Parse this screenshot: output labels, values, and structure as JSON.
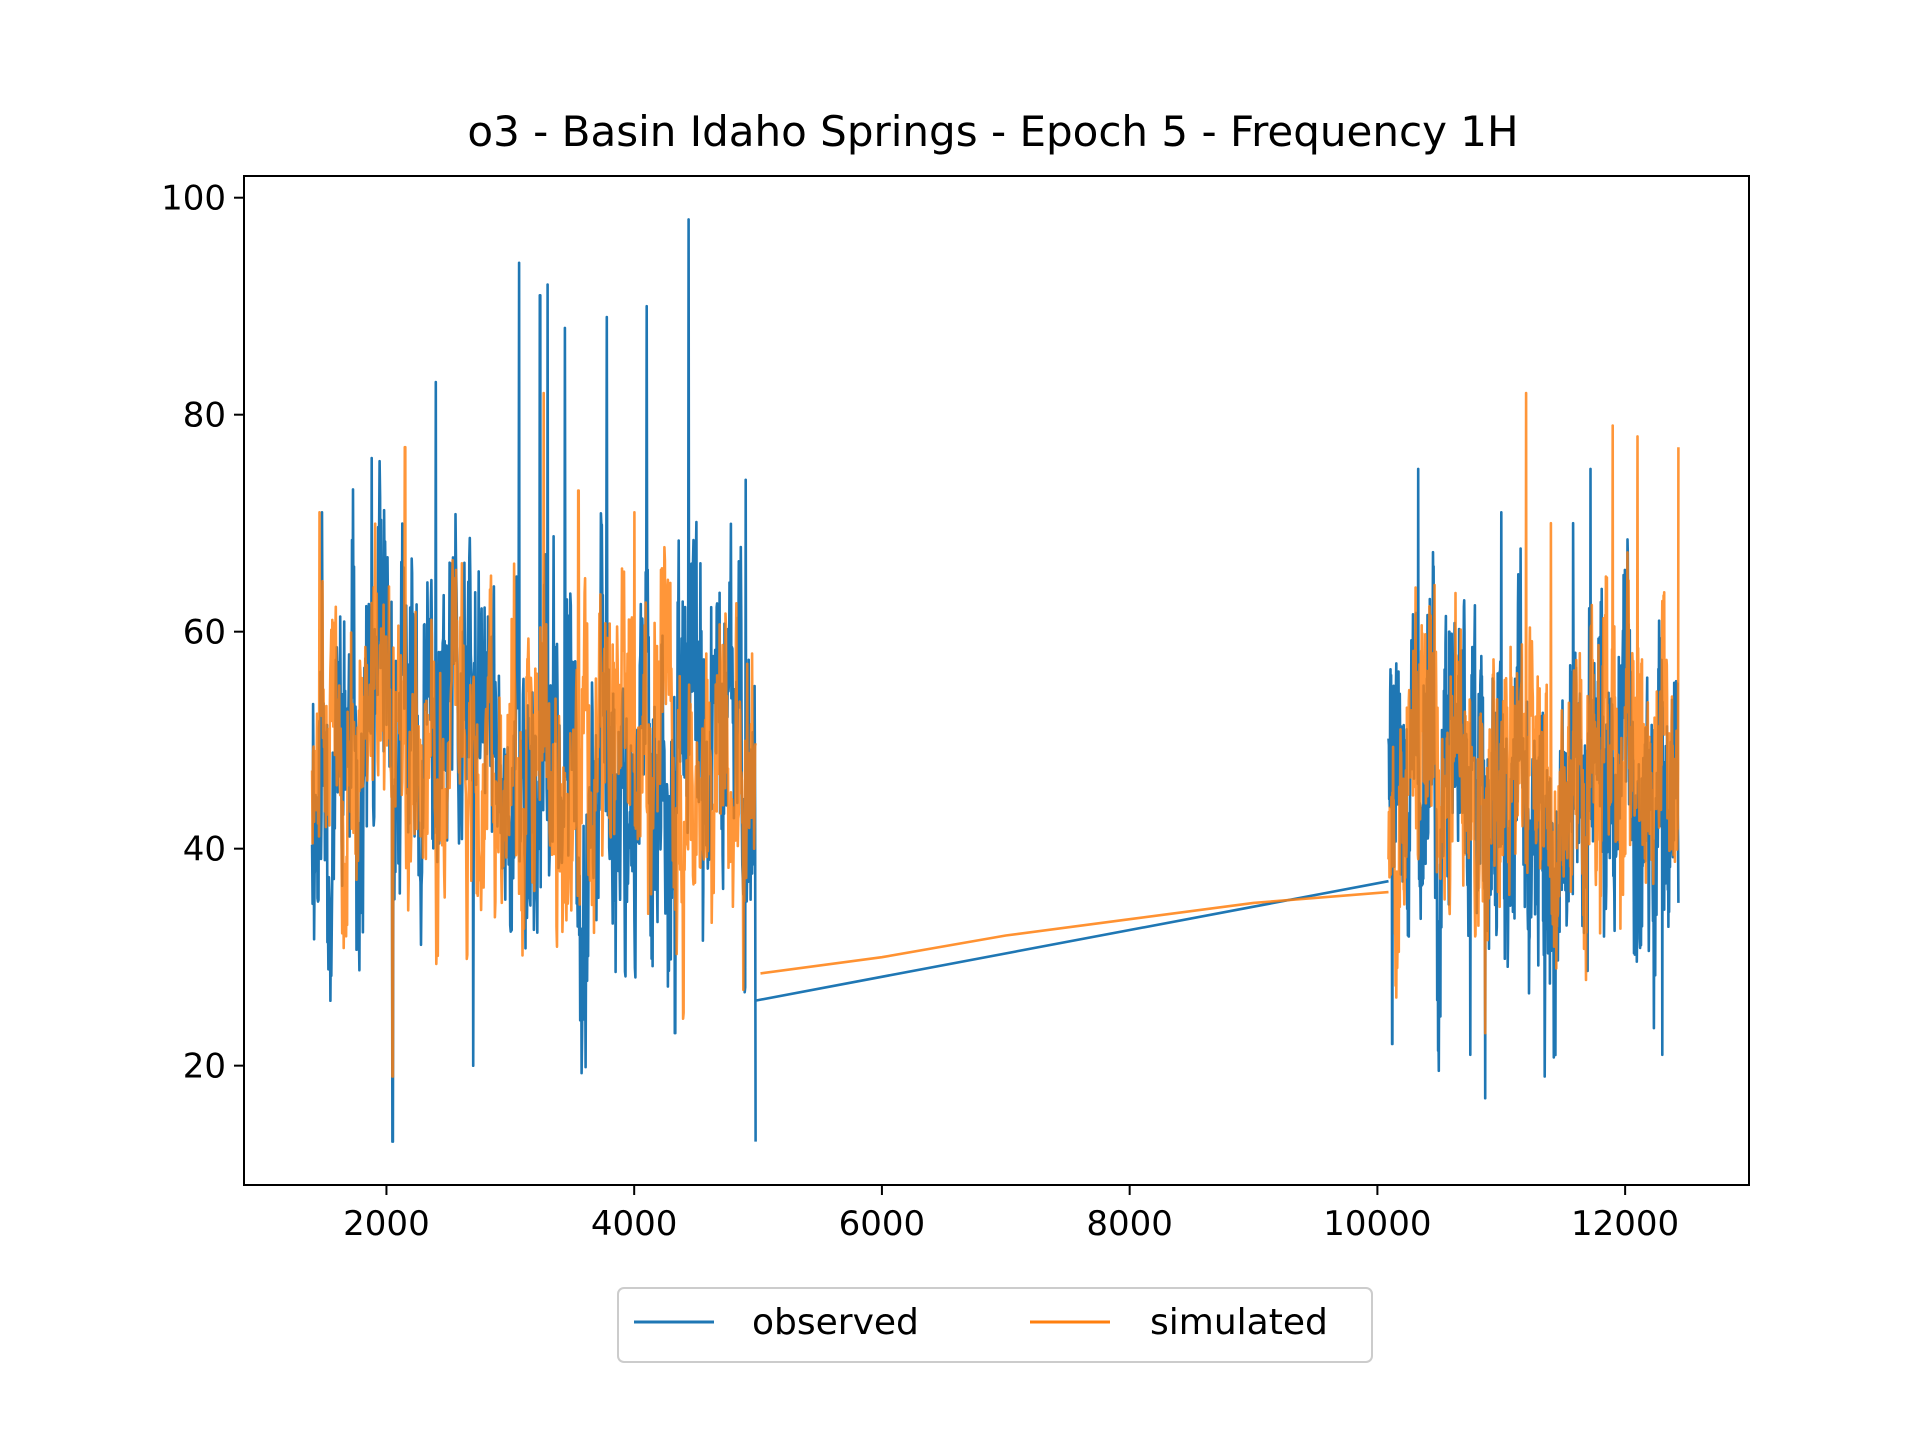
{
  "chart_data": {
    "type": "line",
    "title": "o3 - Basin Idaho Springs - Epoch 5 - Frequency 1H",
    "xlabel": "",
    "ylabel": "",
    "xlim": [
      850,
      13000
    ],
    "ylim": [
      9,
      102
    ],
    "xticks": [
      2000,
      4000,
      6000,
      8000,
      10000,
      12000
    ],
    "yticks": [
      20,
      40,
      60,
      80,
      100
    ],
    "grid": false,
    "legend": {
      "placement": "bottom-center",
      "columns": 2
    },
    "series": [
      {
        "name": "observed",
        "color": "#1f77b4",
        "segments": [
          {
            "x_start": 1400,
            "x_end": 4980,
            "seed": 11,
            "mean": 48,
            "amp": 14,
            "min": 13,
            "max": 98,
            "peaks": [
              [
                1480,
                71
              ],
              [
                1880,
                76
              ],
              [
                2050,
                13
              ],
              [
                2400,
                83
              ],
              [
                2700,
                20
              ],
              [
                3070,
                94
              ],
              [
                3240,
                91
              ],
              [
                3300,
                92
              ],
              [
                3440,
                88
              ],
              [
                3780,
                89
              ],
              [
                4100,
                90
              ],
              [
                4330,
                23
              ],
              [
                4440,
                98
              ],
              [
                4900,
                74
              ],
              [
                4980,
                13
              ]
            ]
          },
          {
            "x_start": 10090,
            "x_end": 12430,
            "seed": 29,
            "mean": 46,
            "amp": 12,
            "min": 17,
            "max": 75,
            "peaks": [
              [
                10120,
                22
              ],
              [
                10330,
                75
              ],
              [
                10580,
                60
              ],
              [
                10750,
                21
              ],
              [
                10870,
                17
              ],
              [
                11000,
                71
              ],
              [
                11350,
                19
              ],
              [
                11580,
                70
              ],
              [
                11720,
                75
              ],
              [
                12300,
                21
              ],
              [
                12430,
                35
              ]
            ]
          }
        ],
        "bridge": [
          [
            4980,
            26
          ],
          [
            10090,
            37
          ]
        ]
      },
      {
        "name": "simulated",
        "color": "#ff7f0e",
        "segments": [
          {
            "x_start": 1400,
            "x_end": 4980,
            "seed": 47,
            "mean": 49,
            "amp": 11,
            "min": 19,
            "max": 82,
            "peaks": [
              [
                1460,
                71
              ],
              [
                2150,
                77
              ],
              [
                2050,
                19
              ],
              [
                3270,
                82
              ],
              [
                3550,
                73
              ],
              [
                4000,
                71
              ],
              [
                4880,
                27
              ]
            ]
          },
          {
            "x_start": 10090,
            "x_end": 12430,
            "seed": 53,
            "mean": 47,
            "amp": 10,
            "min": 23,
            "max": 82,
            "peaks": [
              [
                11200,
                82
              ],
              [
                11400,
                70
              ],
              [
                11900,
                79
              ],
              [
                12100,
                78
              ],
              [
                12430,
                77
              ],
              [
                10870,
                23
              ]
            ]
          }
        ],
        "bridge": [
          [
            5020,
            28.5
          ],
          [
            6000,
            30
          ],
          [
            7000,
            32
          ],
          [
            8000,
            33.5
          ],
          [
            9000,
            35
          ],
          [
            10090,
            36
          ]
        ]
      }
    ]
  }
}
